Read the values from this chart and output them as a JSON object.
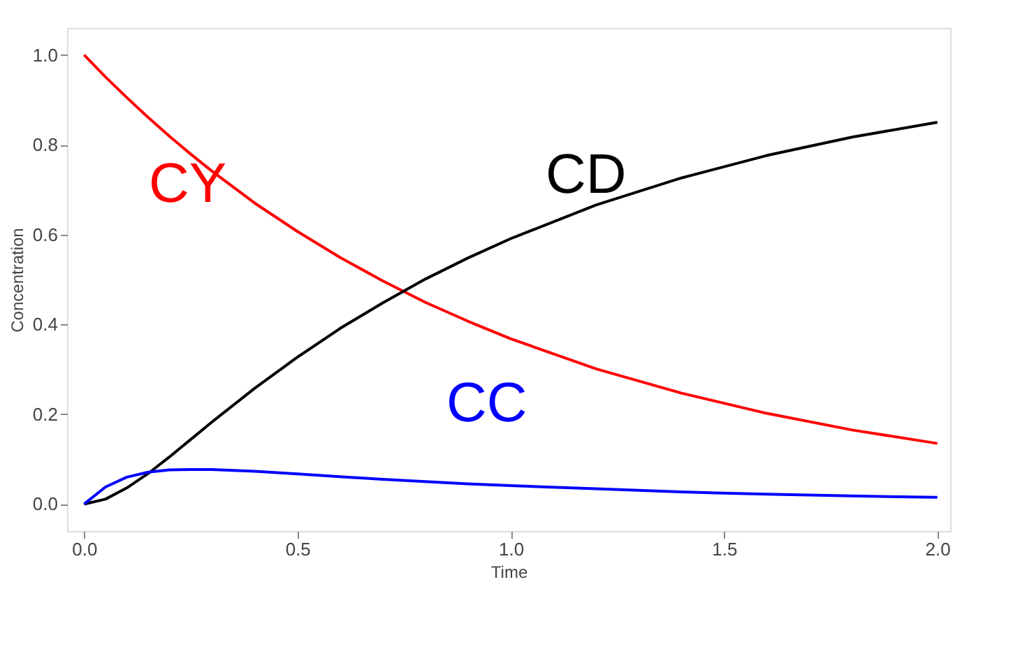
{
  "chart_data": {
    "type": "line",
    "xlabel": "Time",
    "ylabel": "Concentration",
    "x": [
      0,
      0.05,
      0.1,
      0.15,
      0.2,
      0.25,
      0.3,
      0.4,
      0.5,
      0.6,
      0.7,
      0.8,
      0.9,
      1.0,
      1.2,
      1.4,
      1.6,
      1.8,
      2.0
    ],
    "series": [
      {
        "name": "CY",
        "color": "#ff0000",
        "values": [
          1.0,
          0.951,
          0.905,
          0.861,
          0.819,
          0.779,
          0.741,
          0.67,
          0.607,
          0.549,
          0.497,
          0.449,
          0.407,
          0.368,
          0.301,
          0.247,
          0.202,
          0.165,
          0.135
        ]
      },
      {
        "name": "CD",
        "color": "#000000",
        "values": [
          0,
          0.011,
          0.036,
          0.068,
          0.105,
          0.144,
          0.183,
          0.258,
          0.327,
          0.391,
          0.448,
          0.501,
          0.548,
          0.591,
          0.666,
          0.726,
          0.776,
          0.817,
          0.85
        ]
      },
      {
        "name": "CC",
        "color": "#0000ff",
        "values": [
          0,
          0.038,
          0.06,
          0.071,
          0.076,
          0.077,
          0.077,
          0.073,
          0.067,
          0.061,
          0.055,
          0.05,
          0.045,
          0.041,
          0.034,
          0.027,
          0.022,
          0.018,
          0.015
        ]
      }
    ],
    "xlim": [
      -0.04,
      2.03
    ],
    "ylim": [
      -0.06,
      1.06
    ],
    "xticks": [
      {
        "value": 0,
        "label": "0.0"
      },
      0.5,
      {
        "value": 1,
        "label": "1.0"
      },
      1.5,
      {
        "value": 2,
        "label": "2.0"
      }
    ],
    "yticks": [
      {
        "value": 0,
        "label": "0.0"
      },
      0.2,
      0.4,
      0.6,
      0.8,
      {
        "value": 1,
        "label": "1.0"
      }
    ],
    "grid": false,
    "legend": false,
    "marker": "none",
    "line_style": "solid"
  }
}
